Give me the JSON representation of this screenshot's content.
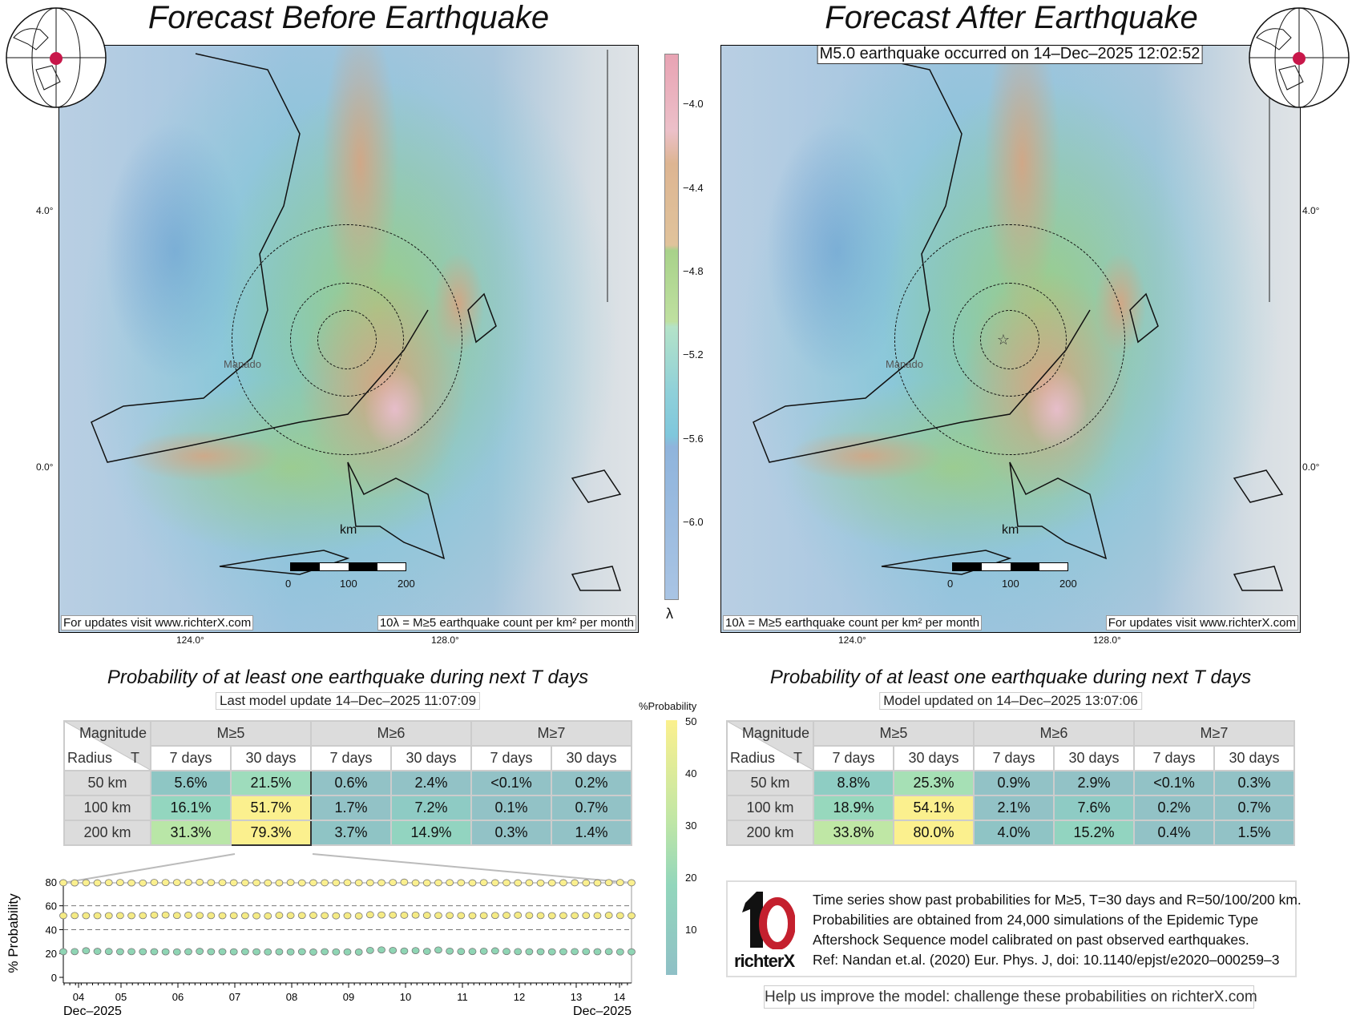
{
  "left": {
    "title": "Forecast Before Earthquake",
    "footer_link": "For updates visit www.richterX.com",
    "footer_legend": "10λ = M≥5 earthquake count per km² per month",
    "table_title": "Probability of at least one earthquake during next T days",
    "update_text": "Last model update 14–Dec–2025 11:07:09"
  },
  "right": {
    "title": "Forecast After Earthquake",
    "event_text": "M5.0 earthquake occurred on 14–Dec–2025 12:02:52",
    "footer_link": "For updates visit www.richterX.com",
    "footer_legend": "10λ = M≥5 earthquake count per km² per month",
    "table_title": "Probability of at least one earthquake during next T days",
    "update_text": "Model updated on 14–Dec–2025 13:07:06"
  },
  "map_labels": {
    "city": "Manado",
    "km": "km",
    "scale_0": "0",
    "scale_100": "100",
    "scale_200": "200",
    "lat_4": "4.0°",
    "lat_0": "0.0°",
    "lon_124": "124.0°",
    "lon_128": "128.0°"
  },
  "rate_colorbar": {
    "label": "λ",
    "ticks": [
      "−4.0",
      "−4.4",
      "−4.8",
      "−5.2",
      "−5.6",
      "−6.0"
    ]
  },
  "prob_colorbar": {
    "label": "%Probability",
    "ticks": [
      "50",
      "40",
      "30",
      "20",
      "10"
    ]
  },
  "table_headers": {
    "magnitude": "Magnitude",
    "radius": "Radius",
    "t": "T",
    "mags": [
      "M≥5",
      "M≥6",
      "M≥7"
    ],
    "periods": [
      "7 days",
      "30 days",
      "7 days",
      "30 days",
      "7 days",
      "30 days"
    ]
  },
  "table_before": {
    "rows": [
      {
        "radius": "50 km",
        "values": [
          "5.6%",
          "21.5%",
          "0.6%",
          "2.4%",
          "<0.1%",
          "0.2%"
        ],
        "colors": [
          "#8ec6c4",
          "#9edcbc",
          "#92c2c6",
          "#92c2c6",
          "#92c2c6",
          "#92c2c6"
        ]
      },
      {
        "radius": "100 km",
        "values": [
          "16.1%",
          "51.7%",
          "1.7%",
          "7.2%",
          "0.1%",
          "0.7%"
        ],
        "colors": [
          "#93d6bf",
          "#fbf08e",
          "#92c2c6",
          "#8ecbc4",
          "#92c2c6",
          "#92c2c6"
        ]
      },
      {
        "radius": "200 km",
        "values": [
          "31.3%",
          "79.3%",
          "3.7%",
          "14.9%",
          "0.3%",
          "1.4%"
        ],
        "colors": [
          "#b9e6a7",
          "#fbf08e",
          "#8fc4c5",
          "#92d4c0",
          "#92c2c6",
          "#92c2c6"
        ]
      }
    ]
  },
  "table_after": {
    "rows": [
      {
        "radius": "50 km",
        "values": [
          "8.8%",
          "25.3%",
          "0.9%",
          "2.9%",
          "<0.1%",
          "0.3%"
        ],
        "colors": [
          "#8ecdc3",
          "#a6e0b5",
          "#92c2c6",
          "#92c2c6",
          "#92c2c6",
          "#92c2c6"
        ]
      },
      {
        "radius": "100 km",
        "values": [
          "18.9%",
          "54.1%",
          "2.1%",
          "7.6%",
          "0.2%",
          "0.7%"
        ],
        "colors": [
          "#97d8bd",
          "#fbf08e",
          "#92c2c6",
          "#8ecbc4",
          "#92c2c6",
          "#92c2c6"
        ]
      },
      {
        "radius": "200 km",
        "values": [
          "33.8%",
          "80.0%",
          "4.0%",
          "15.2%",
          "0.4%",
          "1.5%"
        ],
        "colors": [
          "#bfe7a5",
          "#fbf08e",
          "#8fc4c5",
          "#92d4c0",
          "#92c2c6",
          "#92c2c6"
        ]
      }
    ]
  },
  "chart_data": {
    "type": "scatter",
    "title": "",
    "ylabel": "% Probability",
    "xlabel_left": "Dec–2025",
    "xlabel_right": "Dec–2025",
    "ylim": [
      0,
      90
    ],
    "yticks": [
      "0",
      "20",
      "40",
      "60",
      "80"
    ],
    "xticks": [
      "04",
      "05",
      "06",
      "07",
      "08",
      "09",
      "10",
      "11",
      "12",
      "13",
      "14"
    ],
    "grid_dashed_at": [
      40,
      60
    ],
    "series": [
      {
        "name": "200 km",
        "color": "#fbf08e",
        "values": [
          79.3,
          79.2,
          79.3,
          79.2,
          79.4,
          79.5,
          79.2,
          79.1,
          79.6,
          79.5,
          79.5,
          79.6,
          79.7,
          79.4,
          79.4,
          79.3,
          79.3,
          79.3,
          79.2,
          79.2,
          79.5,
          79.2,
          79.3,
          79.3,
          79.3,
          79.4,
          79.3,
          79.3,
          79.3,
          79.5,
          79.8,
          79.2,
          79.2,
          79.3,
          79.4,
          79.3,
          79.2,
          79.4,
          79.3,
          79.3,
          79.2,
          79.3,
          79.1,
          79.2,
          79.3,
          79.3,
          79.2,
          79.2,
          79.4,
          79.5,
          79.3
        ]
      },
      {
        "name": "100 km",
        "color": "#f5eb84",
        "values": [
          51.7,
          51.8,
          51.7,
          51.7,
          51.7,
          51.8,
          51.7,
          51.8,
          52.2,
          52.3,
          51.9,
          52.1,
          51.9,
          51.8,
          51.7,
          51.8,
          51.7,
          51.6,
          51.5,
          52.0,
          51.9,
          51.9,
          52.0,
          51.8,
          51.6,
          51.7,
          51.5,
          52.5,
          52.3,
          52.2,
          52.1,
          52.2,
          52.0,
          51.9,
          51.9,
          51.8,
          51.7,
          51.8,
          51.9,
          52.0,
          52.1,
          51.9,
          51.8,
          51.7,
          51.8,
          51.8,
          51.9,
          51.8,
          52.0,
          51.8,
          51.7
        ]
      },
      {
        "name": "50 km",
        "color": "#8fd5b4",
        "values": [
          21.5,
          21.6,
          22.3,
          21.8,
          21.7,
          21.5,
          21.6,
          21.5,
          21.5,
          21.4,
          21.3,
          21.5,
          21.8,
          21.5,
          21.5,
          21.4,
          21.5,
          21.4,
          21.3,
          21.4,
          21.3,
          21.5,
          21.2,
          21.5,
          21.3,
          21.3,
          21.2,
          22.6,
          23.0,
          22.6,
          22.1,
          22.4,
          21.8,
          22.9,
          22.0,
          21.7,
          21.7,
          21.9,
          22.2,
          21.7,
          21.6,
          21.5,
          21.5,
          21.4,
          21.5,
          21.6,
          21.6,
          21.5,
          21.6,
          21.3,
          21.4
        ]
      }
    ]
  },
  "info": {
    "logo_text": "richterX",
    "lines": [
      "Time series show past probabilities for M≥5, T=30 days and R=50/100/200 km.",
      "Probabilities are obtained from 24,000 simulations of the Epidemic Type",
      "Aftershock Sequence model calibrated on past observed earthquakes.",
      "Ref: Nandan et.al. (2020) Eur. Phys. J, doi: 10.1140/epjst/e2020–000259–3"
    ],
    "help_text": "Help us improve the model: challenge these probabilities on richterX.com"
  }
}
